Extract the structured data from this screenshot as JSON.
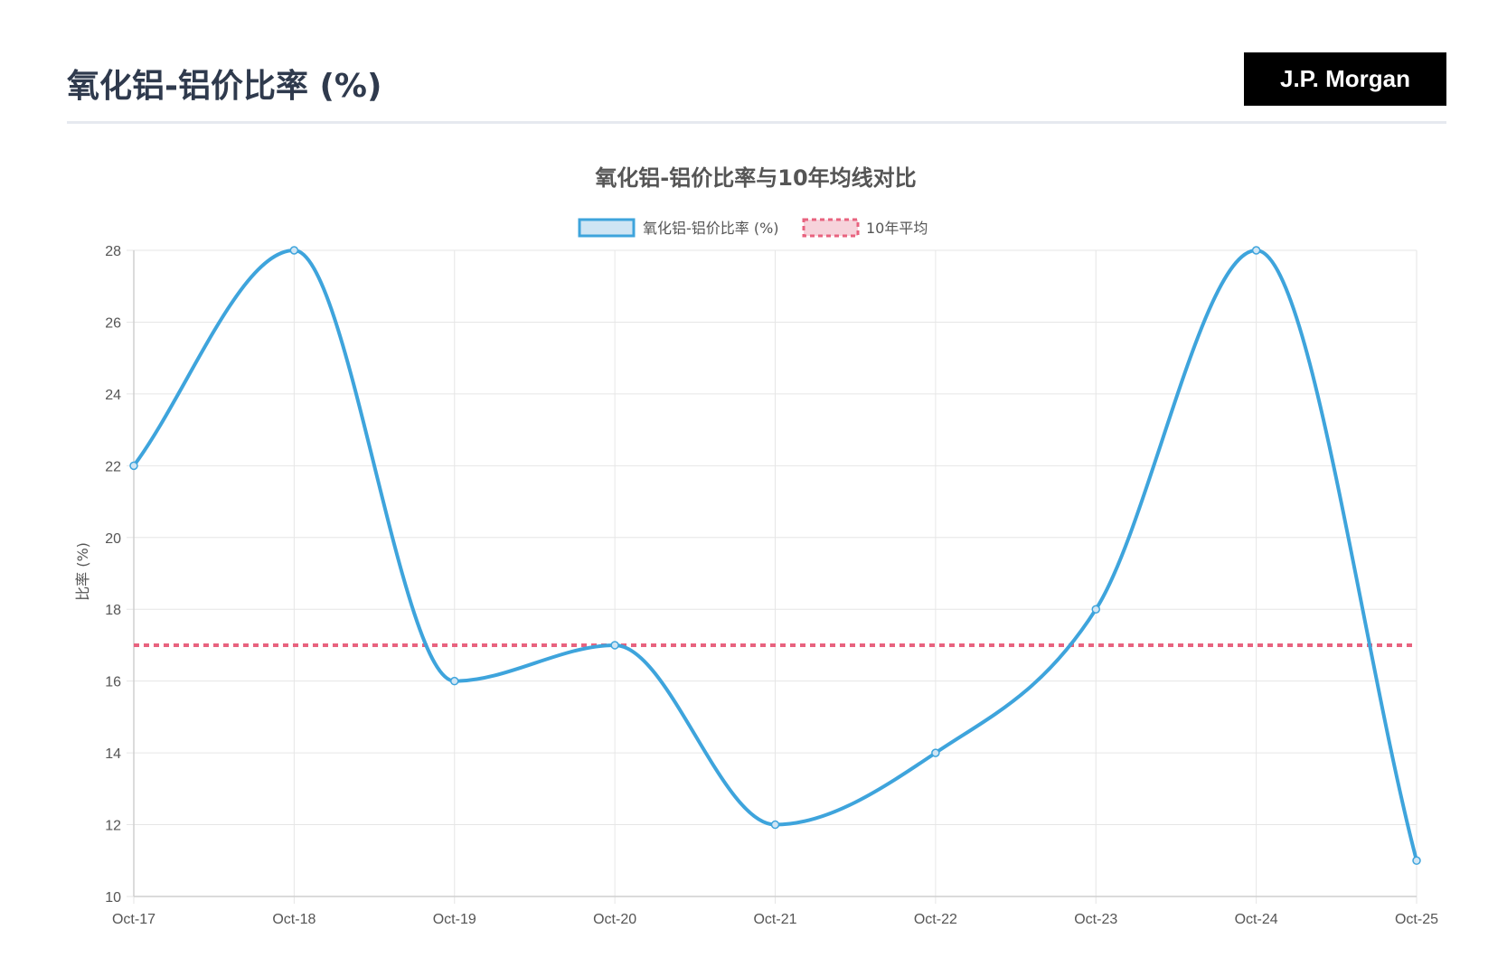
{
  "header": {
    "title": "氧化铝-铝价比率 (%)",
    "brand": "J.P. Morgan"
  },
  "colors": {
    "series": "#3ea4dc",
    "series_fill": "#cfe5f4",
    "average": "#e8637f",
    "average_fill": "#f6d3db",
    "grid": "#e6e6e6",
    "text": "#555555"
  },
  "chart_data": {
    "type": "line",
    "title": "氧化铝-铝价比率与10年均线对比",
    "xlabel": "",
    "ylabel": "比率 (%)",
    "ylim": [
      10,
      28
    ],
    "y_ticks": [
      10,
      12,
      14,
      16,
      18,
      20,
      22,
      24,
      26,
      28
    ],
    "grid": true,
    "legend_position": "top",
    "categories": [
      "Oct-17",
      "Oct-18",
      "Oct-19",
      "Oct-20",
      "Oct-21",
      "Oct-22",
      "Oct-23",
      "Oct-24",
      "Oct-25"
    ],
    "series": [
      {
        "name": "氧化铝-铝价比率 (%)",
        "style": "solid-smooth",
        "values": [
          22,
          28,
          16,
          17,
          12,
          14,
          18,
          28,
          11
        ]
      },
      {
        "name": "10年平均",
        "style": "dashed",
        "values": [
          17,
          17,
          17,
          17,
          17,
          17,
          17,
          17,
          17
        ]
      }
    ]
  }
}
